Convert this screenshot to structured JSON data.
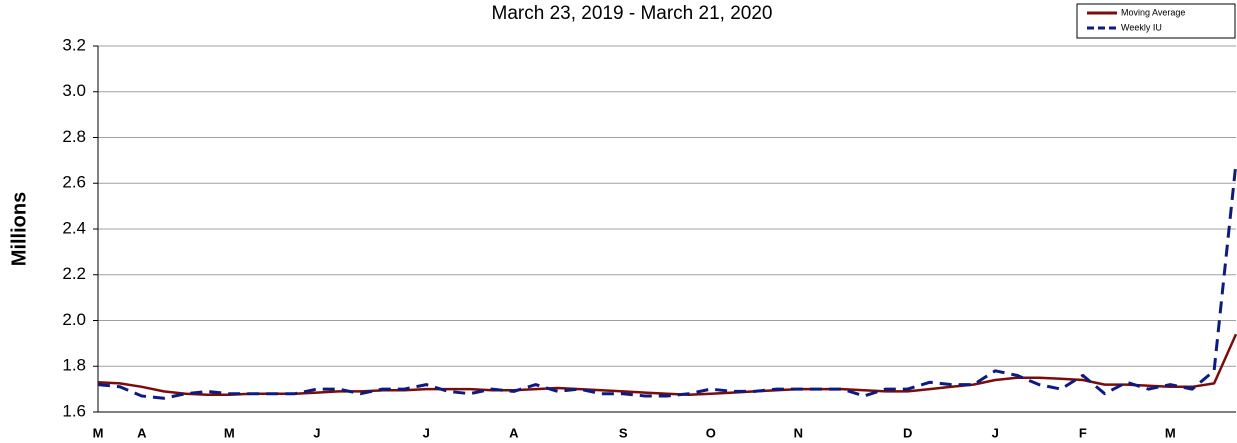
{
  "chart_data": {
    "type": "line",
    "title": "March 23, 2019 - March 21, 2020",
    "y_label": "Millions",
    "categories": [
      "M",
      null,
      "A",
      null,
      null,
      null,
      "M",
      null,
      null,
      null,
      "J",
      null,
      null,
      null,
      null,
      "J",
      null,
      null,
      null,
      "A",
      null,
      null,
      null,
      null,
      "S",
      null,
      null,
      null,
      "O",
      null,
      null,
      null,
      "N",
      null,
      null,
      null,
      null,
      "D",
      null,
      null,
      null,
      "J",
      null,
      null,
      null,
      "F",
      null,
      null,
      null,
      "M",
      null,
      null,
      null
    ],
    "series": [
      {
        "name": "Moving Average",
        "color": "#7b0c0c",
        "dash": "solid",
        "values": [
          1.73,
          1.725,
          1.71,
          1.69,
          1.68,
          1.675,
          1.675,
          1.68,
          1.68,
          1.68,
          1.685,
          1.69,
          1.69,
          1.695,
          1.695,
          1.7,
          1.7,
          1.7,
          1.695,
          1.695,
          1.7,
          1.705,
          1.7,
          1.695,
          1.69,
          1.685,
          1.68,
          1.675,
          1.68,
          1.685,
          1.69,
          1.695,
          1.7,
          1.7,
          1.7,
          1.695,
          1.69,
          1.69,
          1.7,
          1.71,
          1.72,
          1.74,
          1.75,
          1.75,
          1.745,
          1.74,
          1.72,
          1.72,
          1.715,
          1.71,
          1.71,
          1.725,
          1.94
        ]
      },
      {
        "name": "Weekly IU",
        "color": "#0d1a80",
        "dash": "dashed",
        "values": [
          1.72,
          1.71,
          1.67,
          1.66,
          1.68,
          1.69,
          1.68,
          1.68,
          1.68,
          1.68,
          1.7,
          1.7,
          1.68,
          1.7,
          1.7,
          1.72,
          1.69,
          1.68,
          1.7,
          1.69,
          1.72,
          1.69,
          1.7,
          1.68,
          1.68,
          1.67,
          1.67,
          1.68,
          1.7,
          1.69,
          1.69,
          1.7,
          1.7,
          1.7,
          1.7,
          1.67,
          1.7,
          1.7,
          1.73,
          1.72,
          1.72,
          1.78,
          1.76,
          1.72,
          1.7,
          1.76,
          1.68,
          1.73,
          1.7,
          1.72,
          1.7,
          1.78,
          2.69
        ]
      }
    ],
    "ylim": [
      1.6,
      3.2
    ],
    "yticks": [
      {
        "value": 1.6,
        "label": "1.6"
      },
      1.8,
      {
        "value": 2.0,
        "label": "2.0"
      },
      2.2,
      2.4,
      2.6,
      2.8,
      {
        "value": 3.0,
        "label": "3.0"
      },
      3.2
    ],
    "grid": true,
    "legend": "upper right"
  }
}
